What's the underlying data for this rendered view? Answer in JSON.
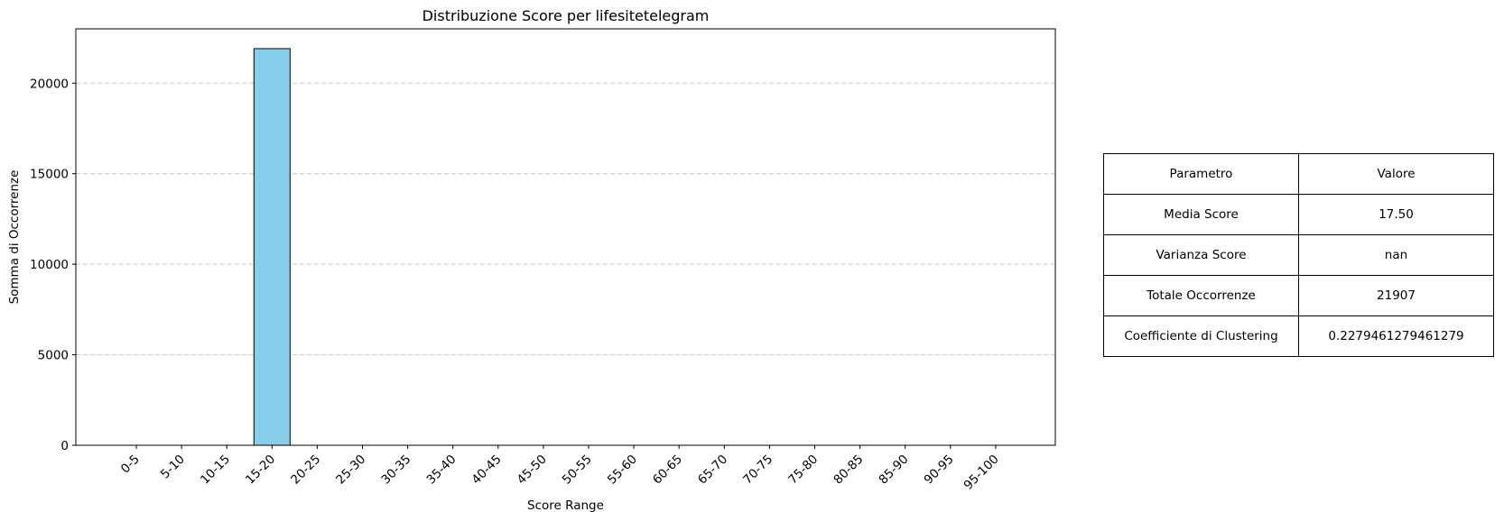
{
  "chart_data": {
    "type": "bar",
    "title": "Distribuzione Score per lifesitetelegram",
    "xlabel": "Score Range",
    "ylabel": "Somma di Occorrenze",
    "categories": [
      "0-5",
      "5-10",
      "10-15",
      "15-20",
      "20-25",
      "25-30",
      "30-35",
      "35-40",
      "40-45",
      "45-50",
      "50-55",
      "55-60",
      "60-65",
      "65-70",
      "70-75",
      "75-80",
      "80-85",
      "85-90",
      "90-95",
      "95-100"
    ],
    "values": [
      0,
      0,
      0,
      21907,
      0,
      0,
      0,
      0,
      0,
      0,
      0,
      0,
      0,
      0,
      0,
      0,
      0,
      0,
      0,
      0
    ],
    "ylim": [
      0,
      23000
    ],
    "yticks": [
      0,
      5000,
      10000,
      15000,
      20000
    ],
    "grid": "y-dashed",
    "bar_color": "#87ceeb",
    "bar_edge_color": "#000000",
    "grid_color": "#c8c8c8",
    "x_tick_rotation": 45
  },
  "table": {
    "rows": [
      [
        "Parametro",
        "Valore"
      ],
      [
        "Media Score",
        "17.50"
      ],
      [
        "Varianza Score",
        "nan"
      ],
      [
        "Totale Occorrenze",
        "21907"
      ],
      [
        "Coefficiente di Clustering",
        "0.2279461279461279"
      ]
    ]
  }
}
